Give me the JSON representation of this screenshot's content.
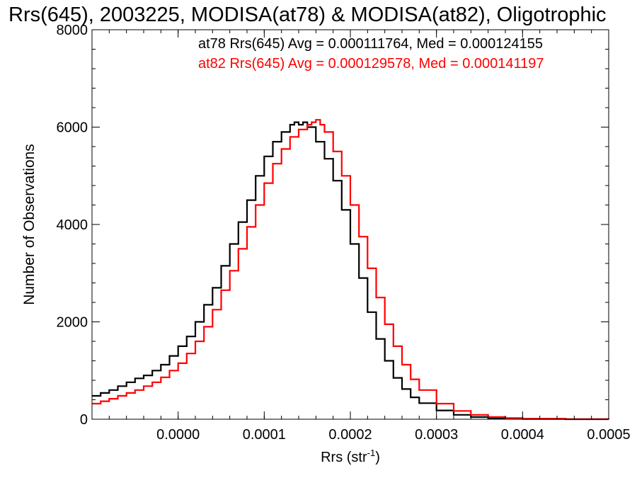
{
  "chart_data": {
    "type": "line",
    "title": "Rrs(645), 2003225, MODISA(at78) & MODISA(at82), Oligotrophic",
    "xlabel": "Rrs (str",
    "xlabel_sup": "-1",
    "xlabel_close": ")",
    "ylabel": "Number of Observations",
    "xlim": [
      -0.0001,
      0.0005
    ],
    "ylim": [
      0,
      8000
    ],
    "x_ticks": [
      0.0,
      0.0001,
      0.0002,
      0.0003,
      0.0004,
      0.0005
    ],
    "x_tick_labels": [
      "0.0000",
      "0.0001",
      "0.0002",
      "0.0003",
      "0.0004",
      "0.0005"
    ],
    "y_ticks": [
      0,
      2000,
      4000,
      6000,
      8000
    ],
    "y_tick_labels": [
      "0",
      "2000",
      "4000",
      "6000",
      "8000"
    ],
    "step_style": "histogram",
    "series": [
      {
        "name": "at78",
        "color": "#000000",
        "annotation": "at78 Rrs(645) Avg = 0.000111764, Med = 0.000124155",
        "x": [
          -0.0001,
          -9e-05,
          -8e-05,
          -7e-05,
          -6e-05,
          -5e-05,
          -4e-05,
          -3e-05,
          -2e-05,
          -1e-05,
          0.0,
          1e-05,
          2e-05,
          3e-05,
          4e-05,
          5e-05,
          6e-05,
          7e-05,
          8e-05,
          9e-05,
          0.0001,
          0.00011,
          0.00012,
          0.00013,
          0.000135,
          0.00014,
          0.000145,
          0.00015,
          0.00016,
          0.00017,
          0.00018,
          0.00019,
          0.0002,
          0.00021,
          0.00022,
          0.00023,
          0.00024,
          0.00025,
          0.00026,
          0.00027,
          0.00028,
          0.0003,
          0.00032,
          0.00034,
          0.00036,
          0.00038,
          0.0004,
          0.00045,
          0.0005
        ],
        "y": [
          480,
          540,
          600,
          680,
          760,
          840,
          900,
          1000,
          1120,
          1300,
          1500,
          1700,
          2000,
          2350,
          2700,
          3150,
          3600,
          4050,
          4500,
          5000,
          5400,
          5700,
          5900,
          6050,
          6100,
          6050,
          6100,
          6000,
          5700,
          5350,
          4900,
          4300,
          3600,
          2900,
          2200,
          1650,
          1200,
          850,
          620,
          450,
          330,
          180,
          90,
          45,
          20,
          10,
          5,
          0,
          0
        ]
      },
      {
        "name": "at82",
        "color": "#ff0000",
        "annotation": "at82 Rrs(645) Avg = 0.000129578, Med = 0.000141197",
        "x": [
          -0.0001,
          -9e-05,
          -8e-05,
          -7e-05,
          -6e-05,
          -5e-05,
          -4e-05,
          -3e-05,
          -2e-05,
          -1e-05,
          0.0,
          1e-05,
          2e-05,
          3e-05,
          4e-05,
          5e-05,
          6e-05,
          7e-05,
          8e-05,
          9e-05,
          0.0001,
          0.00011,
          0.00012,
          0.00013,
          0.00014,
          0.00015,
          0.000155,
          0.00016,
          0.000165,
          0.00017,
          0.00018,
          0.00019,
          0.0002,
          0.00021,
          0.00022,
          0.00023,
          0.00024,
          0.00025,
          0.00026,
          0.00027,
          0.00028,
          0.0003,
          0.00032,
          0.00034,
          0.00036,
          0.00038,
          0.0004,
          0.00045,
          0.0005
        ],
        "y": [
          320,
          370,
          420,
          480,
          540,
          600,
          680,
          760,
          860,
          1000,
          1150,
          1350,
          1600,
          1900,
          2250,
          2650,
          3050,
          3500,
          3950,
          4400,
          4850,
          5250,
          5550,
          5800,
          5950,
          6050,
          6100,
          6150,
          6050,
          5900,
          5500,
          5000,
          4400,
          3750,
          3100,
          2500,
          1950,
          1500,
          1120,
          820,
          600,
          320,
          170,
          90,
          45,
          25,
          12,
          3,
          0
        ]
      }
    ]
  }
}
